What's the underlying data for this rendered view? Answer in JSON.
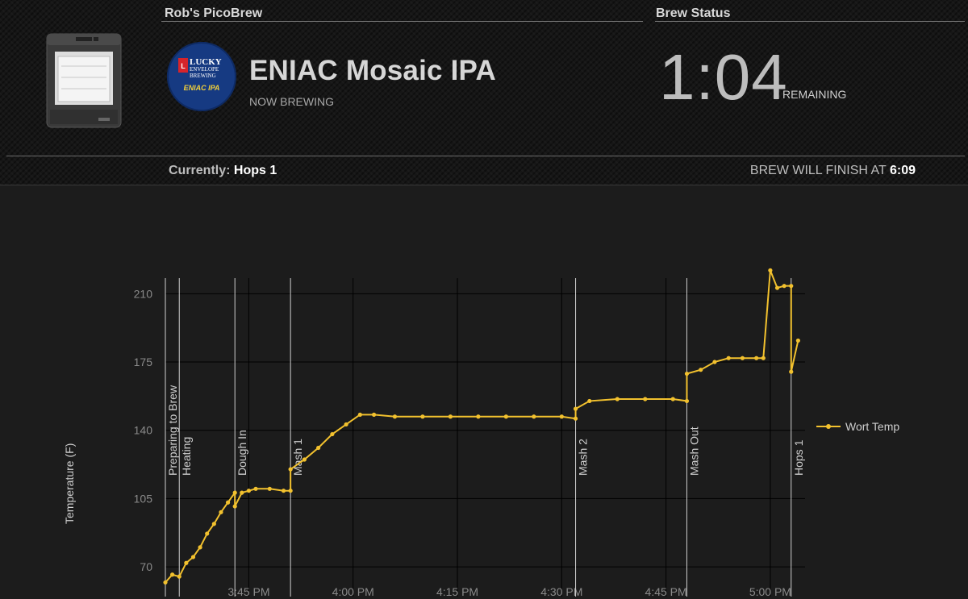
{
  "header": {
    "brewer_label": "Rob's PicoBrew",
    "status_label": "Brew Status",
    "logo_lines": [
      "LUCKY",
      "ENVELOPE",
      "BREWING",
      "ENIAC IPA"
    ],
    "brew_name": "ENIAC Mosaic IPA",
    "brew_state": "NOW BREWING",
    "time_remaining": "1:04",
    "remaining_label": "REMAINING",
    "currently_label": "Currently:",
    "currently_value": "Hops 1",
    "finish_label": "BREW WILL FINISH AT",
    "finish_time": "6:09"
  },
  "chart_data": {
    "type": "line",
    "title": "",
    "xlabel": "",
    "ylabel": "Temperature (F)",
    "x_ticks": [
      "3:45 PM",
      "4:00 PM",
      "4:15 PM",
      "4:30 PM",
      "4:45 PM",
      "5:00 PM"
    ],
    "y_ticks": [
      70,
      105,
      140,
      175,
      210
    ],
    "xlim": [
      "3:33 PM",
      "5:05 PM"
    ],
    "ylim": [
      63,
      218
    ],
    "grid": true,
    "legend": "right",
    "line_color": "#f2c12e",
    "events": [
      {
        "label": "Preparing to Brew",
        "time": "3:33 PM"
      },
      {
        "label": "Heating",
        "time": "3:35 PM"
      },
      {
        "label": "Dough In",
        "time": "3:43 PM"
      },
      {
        "label": "Mash 1",
        "time": "3:51 PM"
      },
      {
        "label": "Mash 2",
        "time": "4:32 PM"
      },
      {
        "label": "Mash Out",
        "time": "4:48 PM"
      },
      {
        "label": "Hops 1",
        "time": "5:03 PM"
      }
    ],
    "series": [
      {
        "name": "Wort Temp",
        "x": [
          "3:33 PM",
          "3:34 PM",
          "3:35 PM",
          "3:36 PM",
          "3:37 PM",
          "3:38 PM",
          "3:39 PM",
          "3:40 PM",
          "3:41 PM",
          "3:42 PM",
          "3:43 PM",
          "3:43 PM",
          "3:44 PM",
          "3:45 PM",
          "3:46 PM",
          "3:48 PM",
          "3:50 PM",
          "3:51 PM",
          "3:51 PM",
          "3:53 PM",
          "3:55 PM",
          "3:57 PM",
          "3:59 PM",
          "4:01 PM",
          "4:03 PM",
          "4:06 PM",
          "4:10 PM",
          "4:14 PM",
          "4:18 PM",
          "4:22 PM",
          "4:26 PM",
          "4:30 PM",
          "4:32 PM",
          "4:32 PM",
          "4:34 PM",
          "4:38 PM",
          "4:42 PM",
          "4:46 PM",
          "4:48 PM",
          "4:48 PM",
          "4:50 PM",
          "4:52 PM",
          "4:54 PM",
          "4:56 PM",
          "4:58 PM",
          "4:59 PM",
          "5:00 PM",
          "5:01 PM",
          "5:02 PM",
          "5:03 PM",
          "5:03 PM",
          "5:04 PM"
        ],
        "y": [
          62,
          66,
          65,
          72,
          75,
          80,
          87,
          92,
          98,
          103,
          108,
          101,
          108,
          109,
          110,
          110,
          109,
          109,
          120,
          125,
          131,
          138,
          143,
          148,
          148,
          147,
          147,
          147,
          147,
          147,
          147,
          147,
          146,
          151,
          155,
          156,
          156,
          156,
          155,
          169,
          171,
          175,
          177,
          177,
          177,
          177,
          222,
          213,
          214,
          214,
          170,
          186
        ]
      }
    ]
  }
}
